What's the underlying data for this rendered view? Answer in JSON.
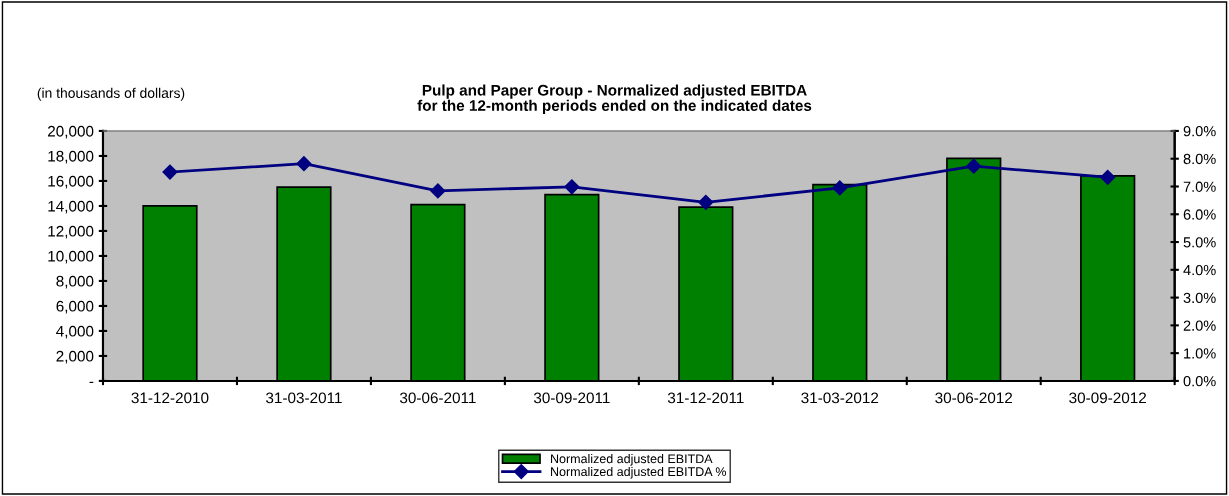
{
  "chart_data": {
    "type": "bar",
    "title": "Pulp and Paper Group - Normalized adjusted EBITDA\nfor the 12-month periods ended on the indicated dates",
    "annotations": [
      "(in thousands of dollars)"
    ],
    "categories": [
      "31-12-2010",
      "31-03-2011",
      "30-06-2011",
      "30-09-2011",
      "31-12-2011",
      "31-03-2012",
      "30-06-2012",
      "30-09-2012"
    ],
    "series": [
      {
        "name": "Normalized adjusted EBITDA",
        "color": "#008000",
        "values": [
          14000,
          15500,
          14100,
          14900,
          13900,
          15700,
          17800,
          16400
        ]
      },
      {
        "name": "Normalized adjusted EBITDA %",
        "type": "line",
        "axis": "y2",
        "color": "#000080",
        "marker": "diamond",
        "values": [
          7.52,
          7.82,
          6.84,
          6.99,
          6.43,
          6.95,
          7.73,
          7.33
        ]
      }
    ],
    "ylim": [
      0,
      20000
    ],
    "yticks": [
      {
        "value": 0,
        "label": "-"
      },
      {
        "value": 2000,
        "label": "2,000"
      },
      {
        "value": 4000,
        "label": "4,000"
      },
      {
        "value": 6000,
        "label": "6,000"
      },
      {
        "value": 8000,
        "label": "8,000"
      },
      {
        "value": 10000,
        "label": "10,000"
      },
      {
        "value": 12000,
        "label": "12,000"
      },
      {
        "value": 14000,
        "label": "14,000"
      },
      {
        "value": 16000,
        "label": "16,000"
      },
      {
        "value": 18000,
        "label": "18,000"
      },
      {
        "value": 20000,
        "label": "20,000"
      }
    ],
    "y2lim": [
      0,
      9
    ],
    "y2ticks": [
      {
        "value": 0,
        "label": "0.0%"
      },
      {
        "value": 1,
        "label": "1.0%"
      },
      {
        "value": 2,
        "label": "2.0%"
      },
      {
        "value": 3,
        "label": "3.0%"
      },
      {
        "value": 4,
        "label": "4.0%"
      },
      {
        "value": 5,
        "label": "5.0%"
      },
      {
        "value": 6,
        "label": "6.0%"
      },
      {
        "value": 7,
        "label": "7.0%"
      },
      {
        "value": 8,
        "label": "8.0%"
      },
      {
        "value": 9,
        "label": "9.0%"
      }
    ],
    "legend": "bottom"
  }
}
